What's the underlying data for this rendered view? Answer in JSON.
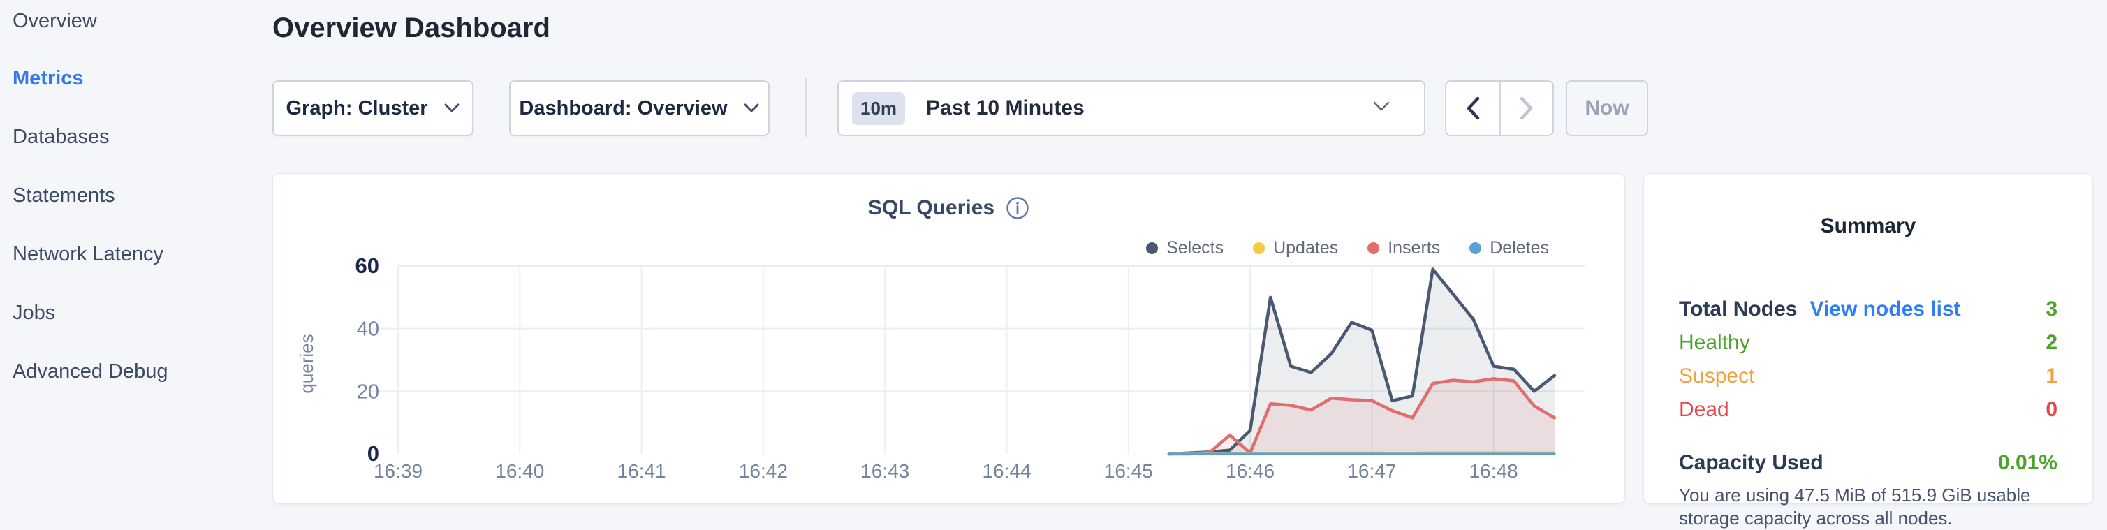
{
  "sidebar": {
    "items": [
      {
        "label": "Overview",
        "active": false
      },
      {
        "label": "Metrics",
        "active": true
      },
      {
        "label": "Databases",
        "active": false
      },
      {
        "label": "Statements",
        "active": false
      },
      {
        "label": "Network Latency",
        "active": false
      },
      {
        "label": "Jobs",
        "active": false
      },
      {
        "label": "Advanced Debug",
        "active": false
      }
    ]
  },
  "header": {
    "title": "Overview Dashboard"
  },
  "toolbar": {
    "graph_dropdown_label": "Graph: Cluster",
    "dashboard_dropdown_label": "Dashboard: Overview",
    "time_selector": {
      "badge": "10m",
      "label": "Past 10 Minutes"
    },
    "prev_enabled": true,
    "next_enabled": false,
    "now_label": "Now"
  },
  "chart_card": {
    "title": "SQL Queries",
    "info_icon": "info-circle"
  },
  "chart_data": {
    "type": "area",
    "title": "SQL Queries",
    "ylabel": "queries",
    "ylim": [
      0,
      60
    ],
    "y_ticks": [
      0,
      20,
      40,
      60
    ],
    "y_ticks_bold": [
      0,
      60
    ],
    "grid": true,
    "legend_position": "top-right",
    "x_ticks": [
      "16:39",
      "16:40",
      "16:41",
      "16:42",
      "16:43",
      "16:44",
      "16:45",
      "16:46",
      "16:47",
      "16:48"
    ],
    "x_base_time": "16:39:00",
    "series": [
      {
        "name": "Selects",
        "color": "#49596f",
        "fill": "rgba(73,89,111,0.11)",
        "points": [
          [
            "16:45:20",
            0
          ],
          [
            "16:45:30",
            0.3
          ],
          [
            "16:45:40",
            0.6
          ],
          [
            "16:45:50",
            1.2
          ],
          [
            "16:46:00",
            7.5
          ],
          [
            "16:46:10",
            50
          ],
          [
            "16:46:20",
            28
          ],
          [
            "16:46:30",
            26
          ],
          [
            "16:46:40",
            32
          ],
          [
            "16:46:50",
            42
          ],
          [
            "16:47:00",
            39.5
          ],
          [
            "16:47:10",
            17
          ],
          [
            "16:47:20",
            18.5
          ],
          [
            "16:47:30",
            59
          ],
          [
            "16:47:40",
            51
          ],
          [
            "16:47:50",
            43
          ],
          [
            "16:48:00",
            28
          ],
          [
            "16:48:10",
            27
          ],
          [
            "16:48:20",
            20
          ],
          [
            "16:48:30",
            25
          ]
        ]
      },
      {
        "name": "Updates",
        "color": "#f5c94a",
        "fill": "none",
        "points": [
          [
            "16:45:20",
            0
          ],
          [
            "16:45:30",
            0
          ],
          [
            "16:45:40",
            0.1
          ],
          [
            "16:45:50",
            0.1
          ],
          [
            "16:46:00",
            0.2
          ],
          [
            "16:46:10",
            0.3
          ],
          [
            "16:46:20",
            0.3
          ],
          [
            "16:46:30",
            0.3
          ],
          [
            "16:46:40",
            0.4
          ],
          [
            "16:46:50",
            0.4
          ],
          [
            "16:47:00",
            0.4
          ],
          [
            "16:47:10",
            0.3
          ],
          [
            "16:47:20",
            0.3
          ],
          [
            "16:47:30",
            0.5
          ],
          [
            "16:47:40",
            0.5
          ],
          [
            "16:47:50",
            0.5
          ],
          [
            "16:48:00",
            0.5
          ],
          [
            "16:48:10",
            0.5
          ],
          [
            "16:48:20",
            0.4
          ],
          [
            "16:48:30",
            0.4
          ]
        ]
      },
      {
        "name": "Inserts",
        "color": "#df6e6c",
        "fill": "rgba(223,110,108,0.12)",
        "points": [
          [
            "16:45:20",
            0
          ],
          [
            "16:45:30",
            0
          ],
          [
            "16:45:40",
            0.5
          ],
          [
            "16:45:50",
            6
          ],
          [
            "16:46:00",
            0.3
          ],
          [
            "16:46:10",
            16
          ],
          [
            "16:46:20",
            15.5
          ],
          [
            "16:46:30",
            14
          ],
          [
            "16:46:40",
            17.8
          ],
          [
            "16:46:50",
            17.3
          ],
          [
            "16:47:00",
            17
          ],
          [
            "16:47:10",
            13.8
          ],
          [
            "16:47:20",
            11.5
          ],
          [
            "16:47:30",
            22.5
          ],
          [
            "16:47:40",
            23.5
          ],
          [
            "16:47:50",
            23
          ],
          [
            "16:48:00",
            24
          ],
          [
            "16:48:10",
            23.3
          ],
          [
            "16:48:20",
            15.3
          ],
          [
            "16:48:30",
            11.5
          ]
        ]
      },
      {
        "name": "Deletes",
        "color": "#57a1d7",
        "fill": "none",
        "points": [
          [
            "16:45:20",
            0
          ],
          [
            "16:45:30",
            0
          ],
          [
            "16:45:40",
            0
          ],
          [
            "16:45:50",
            0
          ],
          [
            "16:46:00",
            0
          ],
          [
            "16:46:10",
            0
          ],
          [
            "16:46:20",
            0
          ],
          [
            "16:46:30",
            0
          ],
          [
            "16:46:40",
            0
          ],
          [
            "16:46:50",
            0
          ],
          [
            "16:47:00",
            0
          ],
          [
            "16:47:10",
            0
          ],
          [
            "16:47:20",
            0
          ],
          [
            "16:47:30",
            0
          ],
          [
            "16:47:40",
            0
          ],
          [
            "16:47:50",
            0
          ],
          [
            "16:48:00",
            0
          ],
          [
            "16:48:10",
            0
          ],
          [
            "16:48:20",
            0
          ],
          [
            "16:48:30",
            0
          ]
        ]
      }
    ]
  },
  "summary": {
    "title": "Summary",
    "rows": [
      {
        "label": "Total Nodes",
        "label_style": "dark",
        "link": "View nodes list",
        "value": "3",
        "value_color": "green"
      },
      {
        "label": "Healthy",
        "label_color": "green",
        "value": "2",
        "value_color": "green"
      },
      {
        "label": "Suspect",
        "label_color": "orange",
        "value": "1",
        "value_color": "orange"
      },
      {
        "label": "Dead",
        "label_color": "red",
        "value": "0",
        "value_color": "red"
      }
    ],
    "capacity": {
      "label": "Capacity Used",
      "value": "0.01%",
      "value_color": "green"
    },
    "description": "You are using 47.5 MiB of 515.9 GiB usable storage capacity across all nodes."
  },
  "colors": {
    "accent_blue": "#3279f1",
    "link_blue": "#2d7ff7",
    "green": "#4ca32a",
    "orange": "#eea33f",
    "red": "#e2484b",
    "grid": "#e9edf4",
    "axis_muted": "#76839f",
    "axis_strong": "#19294c"
  }
}
